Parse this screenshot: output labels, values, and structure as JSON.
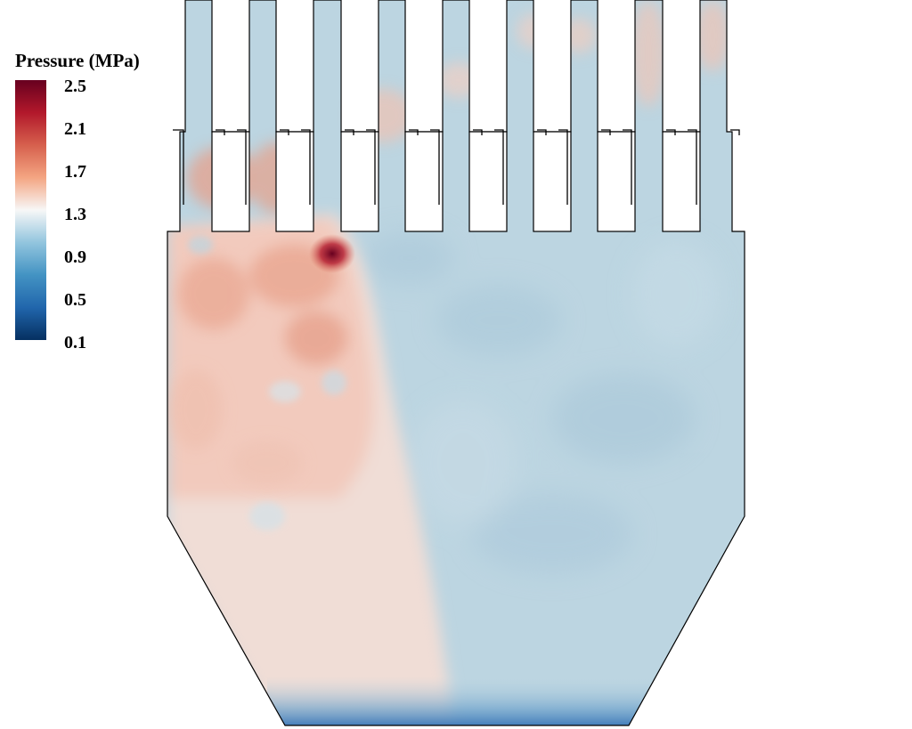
{
  "legend": {
    "title": "Pressure (MPa)",
    "ticks": [
      "2.5",
      "2.1",
      "1.7",
      "1.3",
      "0.9",
      "0.5",
      "0.1"
    ],
    "range": [
      0.1,
      2.5
    ],
    "colormap": [
      "#67001f",
      "#b2182b",
      "#d6604d",
      "#f4a582",
      "#f7f7f7",
      "#92c5de",
      "#4393c3",
      "#2166ac",
      "#053061"
    ]
  },
  "field": {
    "base_color": "#bcd5e1",
    "high_pressure_color": "#f2cabd",
    "peak_color": "#67001f",
    "outlet_color": "#2f6db3"
  }
}
